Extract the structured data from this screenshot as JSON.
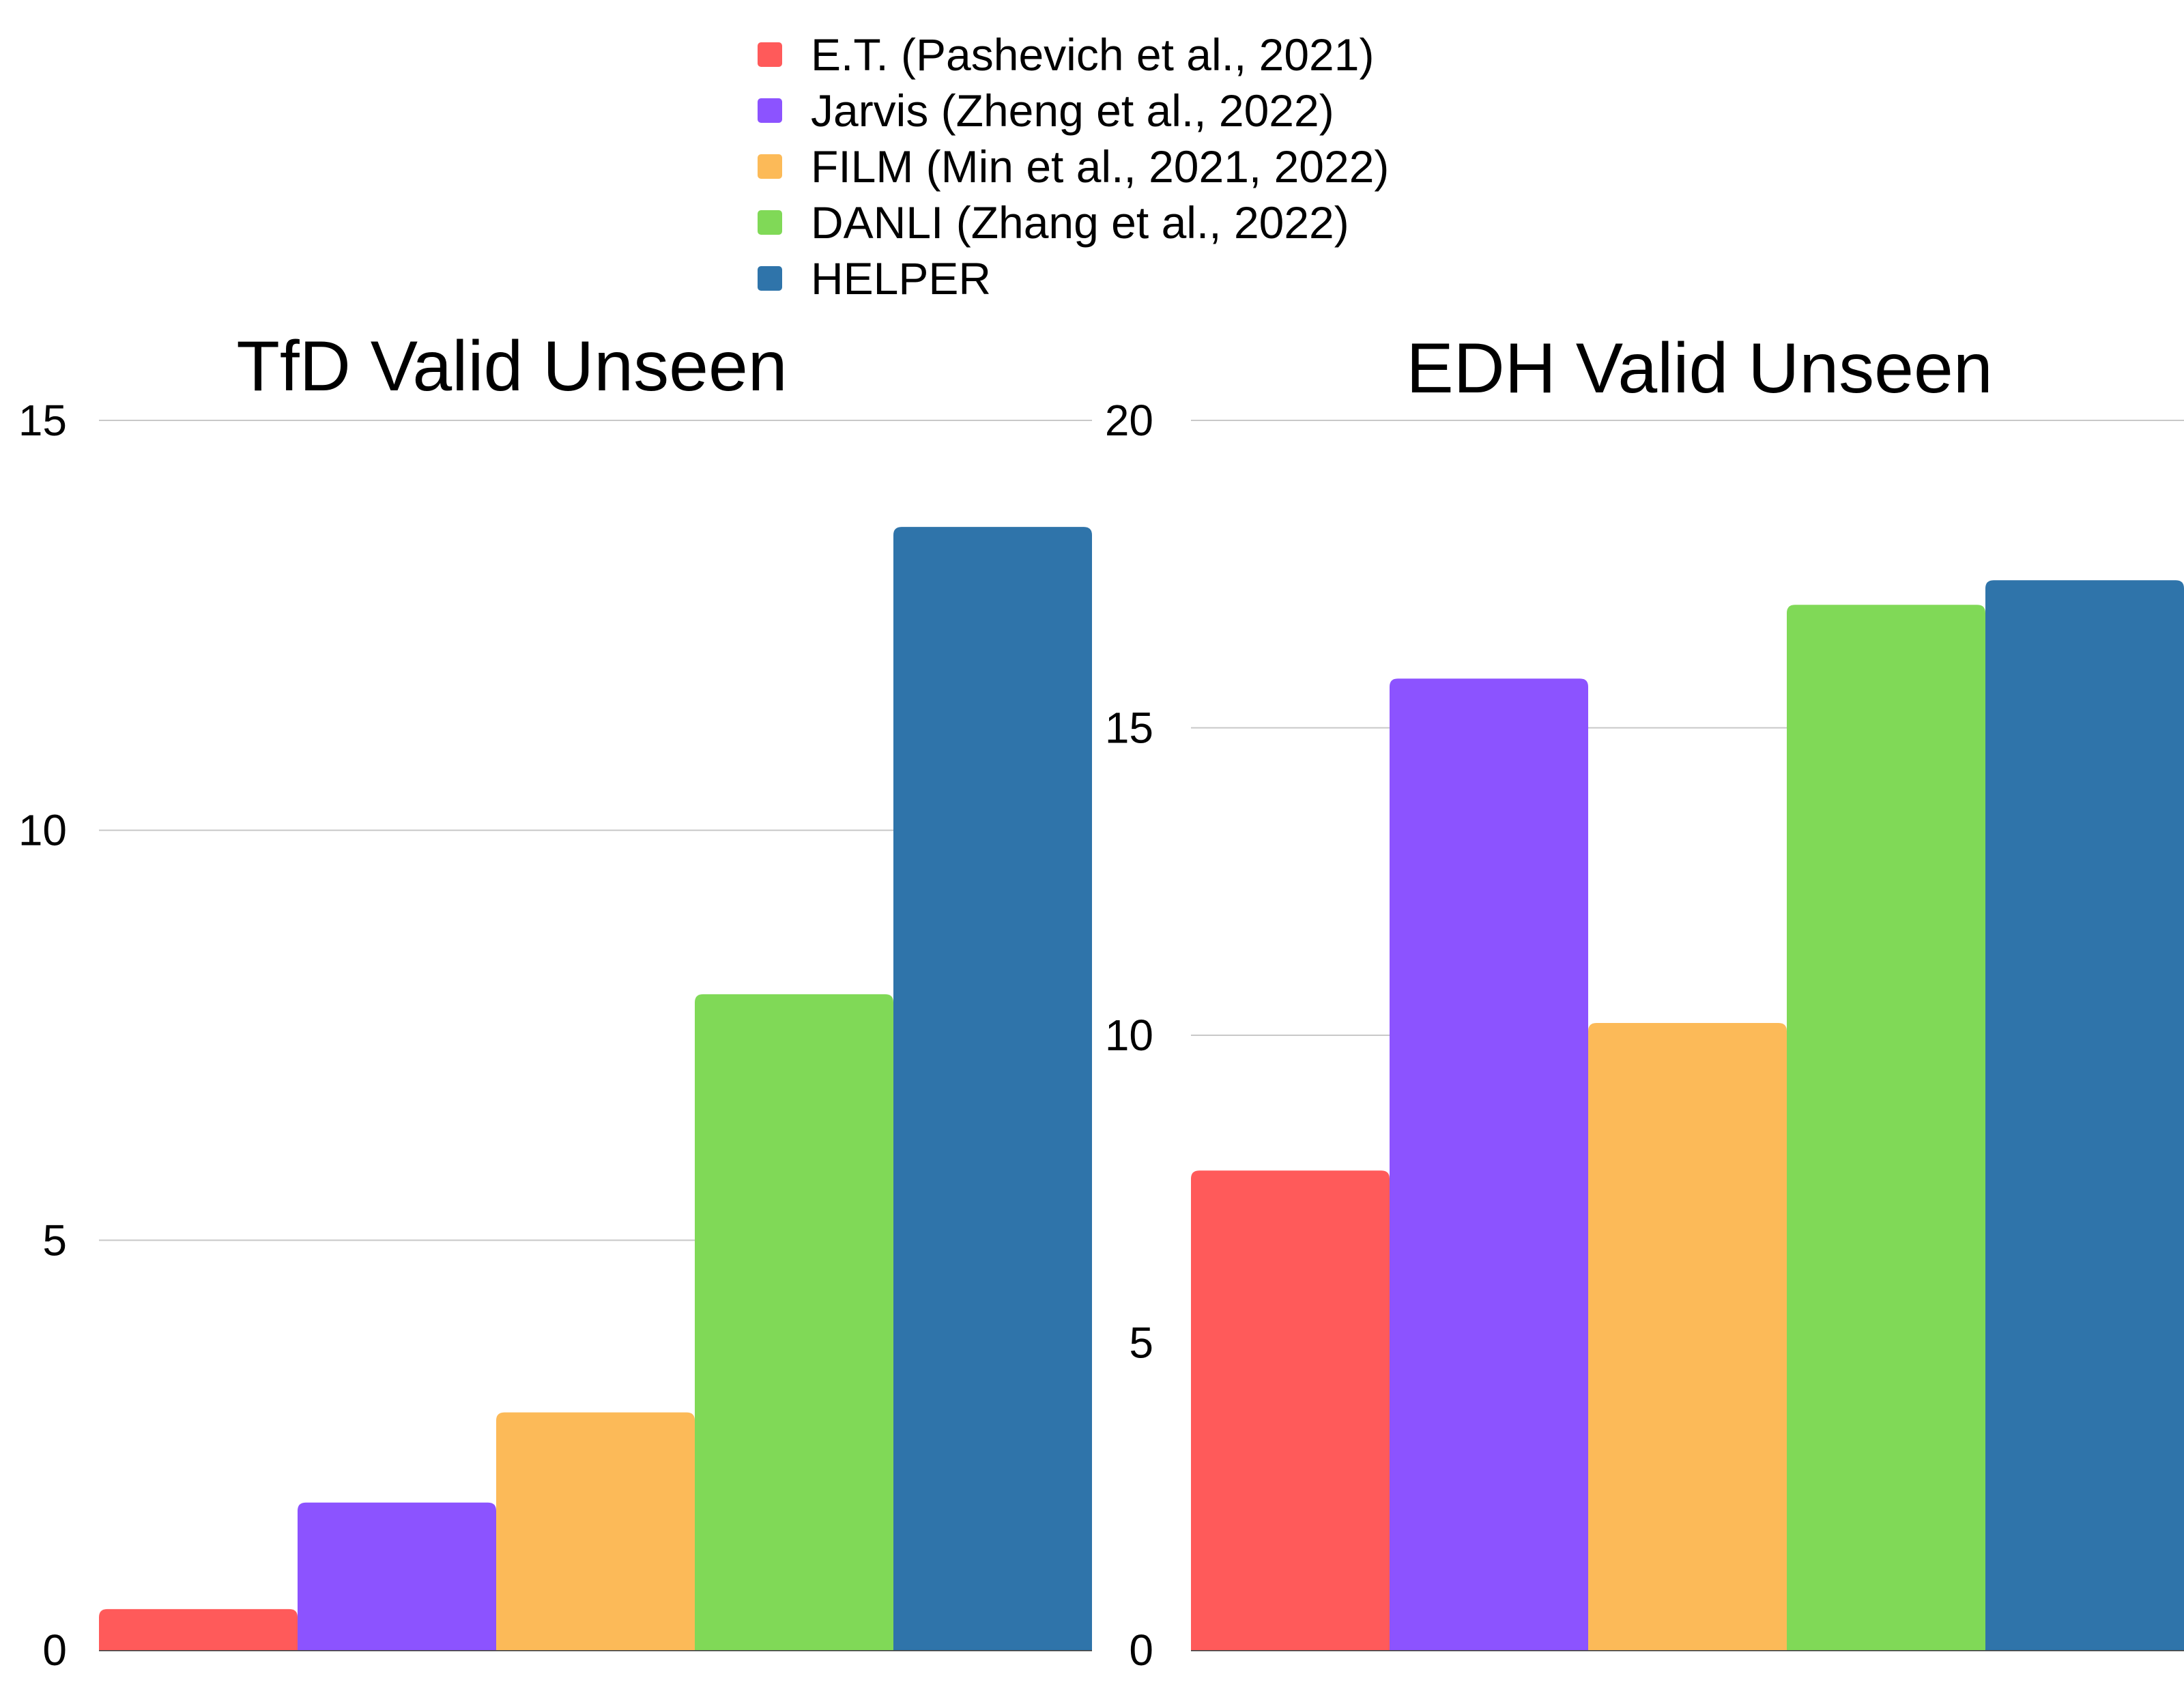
{
  "legend": {
    "items": [
      {
        "label": "E.T. (Pashevich et al., 2021)",
        "color": "#FF5A5A"
      },
      {
        "label": "Jarvis (Zheng et al., 2022)",
        "color": "#8C53FF"
      },
      {
        "label": "FILM (Min et al., 2021, 2022)",
        "color": "#FCBA58"
      },
      {
        "label": "DANLI (Zhang et al., 2022)",
        "color": "#80D957"
      },
      {
        "label": "HELPER",
        "color": "#2F74AA"
      }
    ]
  },
  "chart_data": [
    {
      "type": "bar",
      "title": "TfD Valid Unseen",
      "series": [
        {
          "name": "E.T. (Pashevich et al., 2021)",
          "values": [
            0.5
          ]
        },
        {
          "name": "Jarvis (Zheng et al., 2022)",
          "values": [
            1.8
          ]
        },
        {
          "name": "FILM (Min et al., 2021, 2022)",
          "values": [
            2.9
          ]
        },
        {
          "name": "DANLI (Zhang et al., 2022)",
          "values": [
            8.0
          ]
        },
        {
          "name": "HELPER",
          "values": [
            13.7
          ]
        }
      ],
      "ylim": [
        0,
        15
      ],
      "yticks": [
        "0",
        "5",
        "10",
        "15"
      ],
      "grid": true,
      "legend_position": "top"
    },
    {
      "type": "bar",
      "title": "EDH Valid Unseen",
      "series": [
        {
          "name": "E.T. (Pashevich et al., 2021)",
          "values": [
            7.8
          ]
        },
        {
          "name": "Jarvis (Zheng et al., 2022)",
          "values": [
            15.8
          ]
        },
        {
          "name": "FILM (Min et al., 2021, 2022)",
          "values": [
            10.2
          ]
        },
        {
          "name": "DANLI (Zhang et al., 2022)",
          "values": [
            17.0
          ]
        },
        {
          "name": "HELPER",
          "values": [
            17.4
          ]
        }
      ],
      "ylim": [
        0,
        20
      ],
      "yticks": [
        "0",
        "5",
        "10",
        "15",
        "20"
      ],
      "grid": true,
      "legend_position": "top"
    }
  ]
}
